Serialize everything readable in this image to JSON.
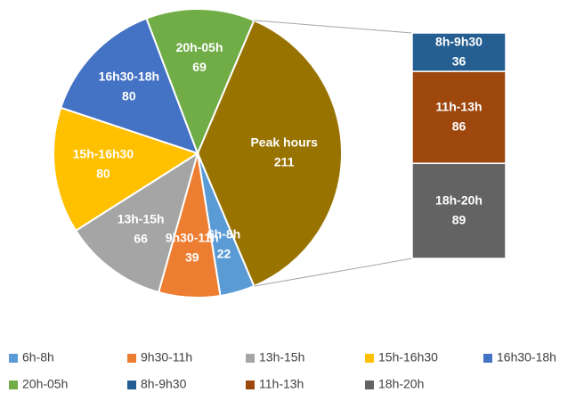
{
  "chart_data": {
    "type": "pie-of-bar",
    "categories": [
      "6h-8h",
      "9h30-11h",
      "13h-15h",
      "15h-16h30",
      "16h30-18h",
      "20h-05h",
      "8h-9h30",
      "11h-13h",
      "18h-20h"
    ],
    "values": [
      22,
      39,
      66,
      80,
      80,
      69,
      36,
      86,
      89
    ],
    "colors": [
      "#5b9bd5",
      "#ed7d31",
      "#a5a5a5",
      "#ffc000",
      "#4472c4",
      "#70ad47",
      "#255e91",
      "#9e480e",
      "#636363"
    ],
    "other": {
      "label": "Peak hours",
      "value": 211,
      "color": "#997300"
    },
    "legend": "bottom"
  }
}
